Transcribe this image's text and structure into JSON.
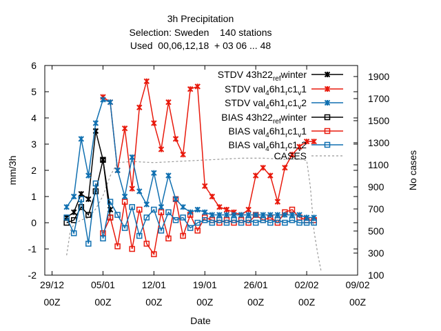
{
  "chart_data": {
    "type": "line",
    "title_lines": [
      "3h Precipitation",
      "Selection: Sweden    140 stations",
      "Used  00,06,12,18  + 03 06 ... 48"
    ],
    "xlabel": "Date",
    "ylabel": "mm/3h",
    "y2label": "No cases",
    "xlim": [
      "2012-12-28T00:00",
      "2013-02-09T00:00"
    ],
    "ylim": [
      -2,
      6
    ],
    "y2lim": [
      100,
      2000
    ],
    "x_ticks": [
      {
        "date": "2012-12-29T00:00",
        "label1": "29/12",
        "label2": "00Z"
      },
      {
        "date": "2013-01-05T00:00",
        "label1": "05/01",
        "label2": "00Z"
      },
      {
        "date": "2013-01-12T00:00",
        "label1": "12/01",
        "label2": "00Z"
      },
      {
        "date": "2013-01-19T00:00",
        "label1": "19/01",
        "label2": "00Z"
      },
      {
        "date": "2013-01-26T00:00",
        "label1": "26/01",
        "label2": "00Z"
      },
      {
        "date": "2013-02-02T00:00",
        "label1": "02/02",
        "label2": "00Z"
      },
      {
        "date": "2013-02-09T00:00",
        "label1": "09/02",
        "label2": "00Z"
      }
    ],
    "y_ticks": [
      -2,
      -1,
      0,
      1,
      2,
      3,
      4,
      5,
      6
    ],
    "y2_ticks": [
      100,
      300,
      500,
      700,
      900,
      1100,
      1300,
      1500,
      1700,
      1900
    ],
    "grid": false,
    "legend_position": "top-right",
    "series": [
      {
        "name": "STDV 43h22_ref_winter",
        "legend": "STDV 43h22",
        "legend_sub": "ref",
        "legend_tail": "winter",
        "color": "#000000",
        "marker": "x",
        "axis": "y",
        "x": [
          "2012-12-31T00:00",
          "2013-01-01T00:00",
          "2013-01-02T00:00",
          "2013-01-03T00:00",
          "2013-01-04T00:00",
          "2013-01-05T00:00",
          "2013-01-06T00:00"
        ],
        "y": [
          0.2,
          0.4,
          1.1,
          0.9,
          3.5,
          2.4,
          0.5
        ]
      },
      {
        "name": "STDV val_46h1_rc1_v1",
        "legend": "STDV val",
        "legend_sub": "4",
        "legend_tail": "6h1",
        "legend_sub2": "r",
        "legend_tail2": "c1",
        "legend_sub3": "v",
        "legend_tail3": "1",
        "color": "#e8190c",
        "marker": "x",
        "axis": "y",
        "x": [
          "2013-01-05T00:00",
          "2013-01-06T00:00",
          "2013-01-07T00:00",
          "2013-01-08T00:00",
          "2013-01-09T00:00",
          "2013-01-10T00:00",
          "2013-01-11T00:00",
          "2013-01-12T00:00",
          "2013-01-13T00:00",
          "2013-01-14T00:00",
          "2013-01-15T00:00",
          "2013-01-16T00:00",
          "2013-01-17T00:00",
          "2013-01-18T00:00",
          "2013-01-19T00:00",
          "2013-01-20T00:00",
          "2013-01-21T00:00",
          "2013-01-22T00:00",
          "2013-01-23T00:00",
          "2013-01-24T00:00",
          "2013-01-25T00:00",
          "2013-01-26T00:00",
          "2013-01-27T00:00",
          "2013-01-28T00:00",
          "2013-01-29T00:00",
          "2013-01-30T00:00",
          "2013-01-31T00:00",
          "2013-02-01T00:00",
          "2013-02-02T00:00",
          "2013-02-03T00:00"
        ],
        "y": [
          4.8,
          4.6,
          2.0,
          3.6,
          1.3,
          4.4,
          5.4,
          3.8,
          2.8,
          4.6,
          3.2,
          2.6,
          5.1,
          5.2,
          1.4,
          1.0,
          0.6,
          0.5,
          0.4,
          0.3,
          0.5,
          1.8,
          2.1,
          1.8,
          0.8,
          2.1,
          2.6,
          2.9,
          3.1,
          3.1
        ]
      },
      {
        "name": "STDV val_46h1_rc1_v2",
        "legend": "STDV val",
        "legend_sub": "4",
        "legend_tail": "6h1",
        "legend_sub2": "r",
        "legend_tail2": "c1",
        "legend_sub3": "v",
        "legend_tail3": "2",
        "color": "#0f6fb0",
        "marker": "x",
        "axis": "y",
        "x": [
          "2012-12-31T00:00",
          "2013-01-01T00:00",
          "2013-01-02T00:00",
          "2013-01-03T00:00",
          "2013-01-04T00:00",
          "2013-01-05T00:00",
          "2013-01-06T00:00",
          "2013-01-07T00:00",
          "2013-01-08T00:00",
          "2013-01-09T00:00",
          "2013-01-10T00:00",
          "2013-01-11T00:00",
          "2013-01-12T00:00",
          "2013-01-13T00:00",
          "2013-01-14T00:00",
          "2013-01-15T00:00",
          "2013-01-16T00:00",
          "2013-01-17T00:00",
          "2013-01-18T00:00",
          "2013-01-19T00:00",
          "2013-01-20T00:00",
          "2013-01-21T00:00",
          "2013-01-22T00:00",
          "2013-01-23T00:00",
          "2013-01-24T00:00",
          "2013-01-25T00:00",
          "2013-01-26T00:00",
          "2013-01-27T00:00",
          "2013-01-28T00:00",
          "2013-01-29T00:00",
          "2013-01-30T00:00",
          "2013-01-31T00:00",
          "2013-02-01T00:00",
          "2013-02-02T00:00",
          "2013-02-03T00:00"
        ],
        "y": [
          0.6,
          1.0,
          3.2,
          1.8,
          3.8,
          4.7,
          4.6,
          2.0,
          1.0,
          2.5,
          1.2,
          0.7,
          1.9,
          0.6,
          1.8,
          0.9,
          0.6,
          0.4,
          0.5,
          0.4,
          0.3,
          0.3,
          0.3,
          0.3,
          0.3,
          0.3,
          0.3,
          0.3,
          0.3,
          0.3,
          0.3,
          0.3,
          0.3,
          0.2,
          0.2
        ]
      },
      {
        "name": "BIAS 43h22_ref_winter",
        "legend": "BIAS 43h22",
        "legend_sub": "ref",
        "legend_tail": "winter",
        "color": "#000000",
        "marker": "square",
        "axis": "y",
        "x": [
          "2012-12-31T00:00",
          "2013-01-01T00:00",
          "2013-01-02T00:00",
          "2013-01-03T00:00",
          "2013-01-04T00:00",
          "2013-01-05T00:00",
          "2013-01-06T00:00"
        ],
        "y": [
          0.0,
          0.1,
          0.6,
          0.3,
          1.2,
          2.4,
          0.2
        ]
      },
      {
        "name": "BIAS val_46h1_rc1_v1",
        "legend": "BIAS val",
        "legend_sub": "4",
        "legend_tail": "6h1",
        "legend_sub2": "r",
        "legend_tail2": "c1",
        "legend_sub3": "v",
        "legend_tail3": "1",
        "color": "#e8190c",
        "marker": "square",
        "axis": "y",
        "x": [
          "2013-01-05T00:00",
          "2013-01-06T00:00",
          "2013-01-07T00:00",
          "2013-01-08T00:00",
          "2013-01-09T00:00",
          "2013-01-10T00:00",
          "2013-01-11T00:00",
          "2013-01-12T00:00",
          "2013-01-13T00:00",
          "2013-01-14T00:00",
          "2013-01-15T00:00",
          "2013-01-16T00:00",
          "2013-01-17T00:00",
          "2013-01-18T00:00",
          "2013-01-19T00:00",
          "2013-01-20T00:00",
          "2013-01-21T00:00",
          "2013-01-22T00:00",
          "2013-01-23T00:00",
          "2013-01-24T00:00",
          "2013-01-25T00:00",
          "2013-01-26T00:00",
          "2013-01-27T00:00",
          "2013-01-28T00:00",
          "2013-01-29T00:00",
          "2013-01-30T00:00",
          "2013-01-31T00:00",
          "2013-02-01T00:00",
          "2013-02-02T00:00",
          "2013-02-03T00:00"
        ],
        "y": [
          -0.4,
          0.2,
          -0.9,
          0.8,
          -1.0,
          0.5,
          -0.8,
          -1.2,
          0.4,
          -0.6,
          0.9,
          -0.5,
          0.3,
          -0.3,
          0.2,
          0.1,
          0.0,
          0.1,
          0.0,
          0.1,
          0.0,
          0.3,
          0.1,
          0.2,
          0.0,
          0.4,
          0.5,
          0.2,
          0.1,
          0.1
        ]
      },
      {
        "name": "BIAS val_46h1_rc1_v2",
        "legend": "BIAS val",
        "legend_sub": "4",
        "legend_tail": "6h1",
        "legend_sub2": "r",
        "legend_tail2": "c1",
        "legend_sub3": "v",
        "legend_tail3": "2",
        "color": "#0f6fb0",
        "marker": "square",
        "axis": "y",
        "x": [
          "2012-12-31T00:00",
          "2013-01-01T00:00",
          "2013-01-02T00:00",
          "2013-01-03T00:00",
          "2013-01-04T00:00",
          "2013-01-05T00:00",
          "2013-01-06T00:00",
          "2013-01-07T00:00",
          "2013-01-08T00:00",
          "2013-01-09T00:00",
          "2013-01-10T00:00",
          "2013-01-11T00:00",
          "2013-01-12T00:00",
          "2013-01-13T00:00",
          "2013-01-14T00:00",
          "2013-01-15T00:00",
          "2013-01-16T00:00",
          "2013-01-17T00:00",
          "2013-01-18T00:00",
          "2013-01-19T00:00",
          "2013-01-20T00:00",
          "2013-01-21T00:00",
          "2013-01-22T00:00",
          "2013-01-23T00:00",
          "2013-01-24T00:00",
          "2013-01-25T00:00",
          "2013-01-26T00:00",
          "2013-01-27T00:00",
          "2013-01-28T00:00",
          "2013-01-29T00:00",
          "2013-01-30T00:00",
          "2013-01-31T00:00",
          "2013-02-01T00:00",
          "2013-02-02T00:00",
          "2013-02-03T00:00"
        ],
        "y": [
          0.2,
          -0.4,
          0.9,
          -0.8,
          1.5,
          -0.6,
          0.8,
          0.3,
          -0.2,
          0.6,
          -0.5,
          0.2,
          0.5,
          -0.3,
          0.4,
          0.1,
          0.2,
          -0.2,
          0.0,
          0.1,
          0.0,
          0.1,
          0.0,
          0.1,
          0.0,
          0.1,
          0.0,
          0.1,
          0.0,
          0.1,
          0.0,
          0.1,
          0.0,
          0.0,
          0.0
        ]
      },
      {
        "name": "CASES",
        "legend": "CASES",
        "color": "#999999",
        "marker": "none",
        "dashed": true,
        "axis": "y2",
        "x": [
          "2012-12-31T00:00",
          "2012-12-31T12:00",
          "2013-01-01T00:00",
          "2013-01-02T00:00",
          "2013-01-03T00:00",
          "2013-01-04T00:00",
          "2013-01-05T00:00",
          "2013-01-06T00:00",
          "2013-01-07T00:00",
          "2013-01-09T00:00",
          "2013-01-12T00:00",
          "2013-01-15T00:00",
          "2013-01-18T00:00",
          "2013-01-21T00:00",
          "2013-01-24T00:00",
          "2013-01-27T00:00",
          "2013-01-30T00:00",
          "2013-02-01T00:00",
          "2013-02-02T00:00",
          "2013-02-02T12:00",
          "2013-02-03T00:00",
          "2013-02-03T12:00",
          "2013-02-04T00:00"
        ],
        "y": [
          280,
          500,
          560,
          600,
          620,
          700,
          820,
          1000,
          1120,
          1130,
          1120,
          1130,
          1140,
          1150,
          1160,
          1160,
          1150,
          1150,
          1140,
          900,
          500,
          300,
          130
        ]
      }
    ]
  }
}
